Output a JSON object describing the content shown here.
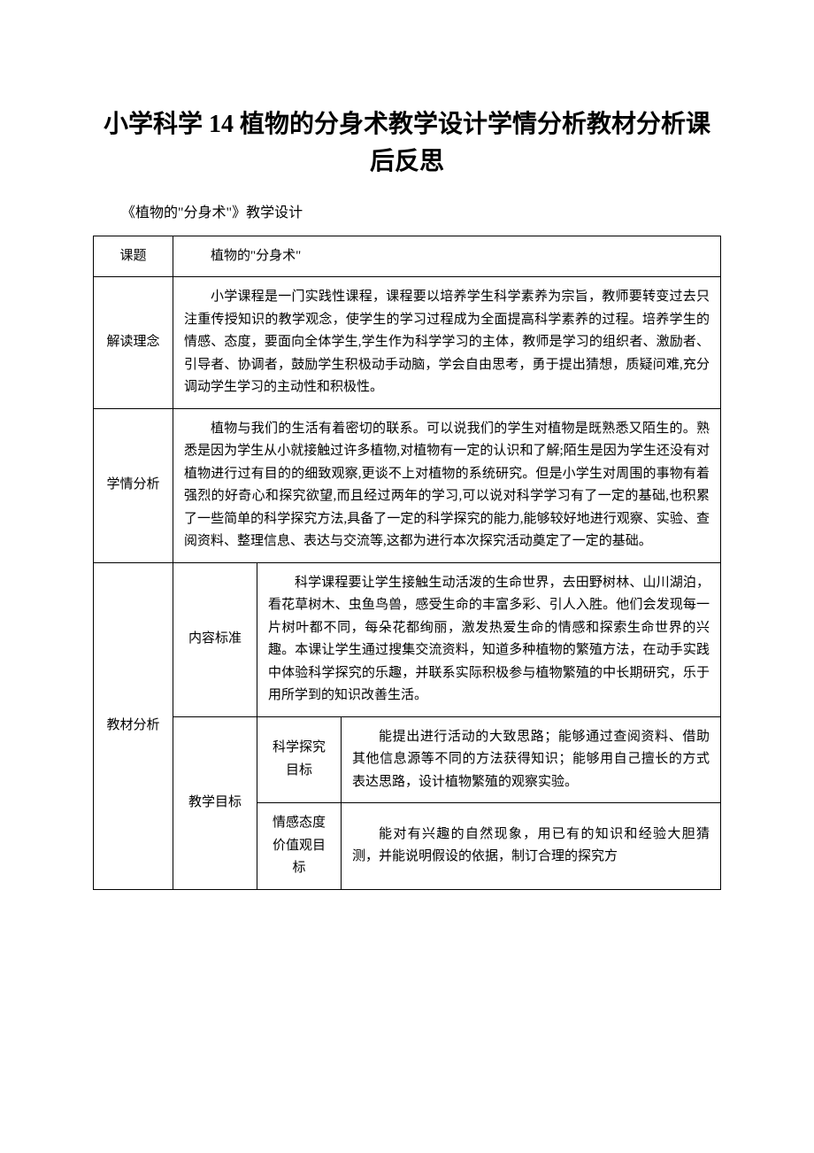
{
  "document": {
    "title": "小学科学 14 植物的分身术教学设计学情分析教材分析课后反思",
    "subtitle": "《植物的\"分身术\"》教学设计",
    "table": {
      "row1": {
        "label": "课题",
        "content": "植物的\"分身术\""
      },
      "row2": {
        "label": "解读理念",
        "content": "小学课程是一门实践性课程，课程要以培养学生科学素养为宗旨，教师要转变过去只注重传授知识的教学观念，使学生的学习过程成为全面提高科学素养的过程。培养学生的情感、态度，要面向全体学生,学生作为科学学习的主体，教师是学习的组织者、激励者、引导者、协调者，鼓励学生积极动手动脑，学会自由思考，勇于提出猜想，质疑问难,充分调动学生学习的主动性和积极性。"
      },
      "row3": {
        "label": "学情分析",
        "content": "植物与我们的生活有着密切的联系。可以说我们的学生对植物是既熟悉又陌生的。熟悉是因为学生从小就接触过许多植物,对植物有一定的认识和了解;陌生是因为学生还没有对植物进行过有目的的细致观察,更谈不上对植物的系统研究。但是小学生对周围的事物有着强烈的好奇心和探究欲望,而且经过两年的学习,可以说对科学学习有了一定的基础,也积累了一些简单的科学探究方法,具备了一定的科学探究的能力,能够较好地进行观察、实验、查阅资料、整理信息、表达与交流等,这都为进行本次探究活动奠定了一定的基础。"
      },
      "row4": {
        "label": "教材分析",
        "sub1": {
          "label": "内容标准",
          "content": "科学课程要让学生接触生动活泼的生命世界，去田野树林、山川湖泊，看花草树木、虫鱼鸟兽，感受生命的丰富多彩、引人入胜。他们会发现每一片树叶都不同，每朵花都绚丽，激发热爱生命的情感和探索生命世界的兴趣。本课让学生通过搜集交流资料，知道多种植物的繁殖方法，在动手实践中体验科学探究的乐趣，并联系实际积极参与植物繁殖的中长期研究，乐于用所学到的知识改善生活。"
        },
        "sub2": {
          "label": "教学目标",
          "goal1": {
            "label": "科学探究目标",
            "content": "能提出进行活动的大致思路；能够通过查阅资料、借助其他信息源等不同的方法获得知识；能够用自己擅长的方式表达思路，设计植物繁殖的观察实验。"
          },
          "goal2": {
            "label": "情感态度价值观目标",
            "content": "能对有兴趣的自然现象，用已有的知识和经验大胆猜测，并能说明假设的依据，制订合理的探究方"
          }
        }
      }
    }
  }
}
